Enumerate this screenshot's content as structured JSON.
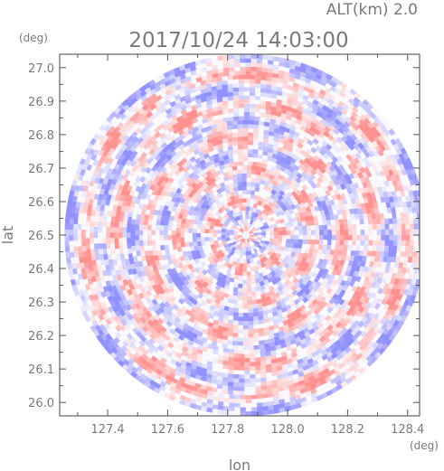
{
  "header": {
    "altitude": "ALT(km)  2.0",
    "datetime": "2017/10/24 14:03:00"
  },
  "chart_data": {
    "type": "heatmap",
    "title": "2017/10/24 14:03:00",
    "subtitle": "ALT(km)  2.0",
    "xlabel": "lon",
    "ylabel": "lat",
    "xunit": "(deg)",
    "yunit": "(deg)",
    "xlim": [
      127.24,
      128.44
    ],
    "ylim": [
      25.96,
      27.04
    ],
    "xticks": [
      "127.4",
      "127.6",
      "127.8",
      "128.0",
      "128.2",
      "128.4"
    ],
    "yticks": [
      "26.0",
      "26.1",
      "26.2",
      "26.3",
      "26.4",
      "26.5",
      "26.6",
      "26.7",
      "26.8",
      "26.9",
      "27.0"
    ],
    "center": {
      "lon": 127.86,
      "lat": 26.5
    },
    "radius_deg_lat": 0.54,
    "colors": {
      "positive": "#ff9a9a",
      "negative": "#9a9aff"
    }
  }
}
